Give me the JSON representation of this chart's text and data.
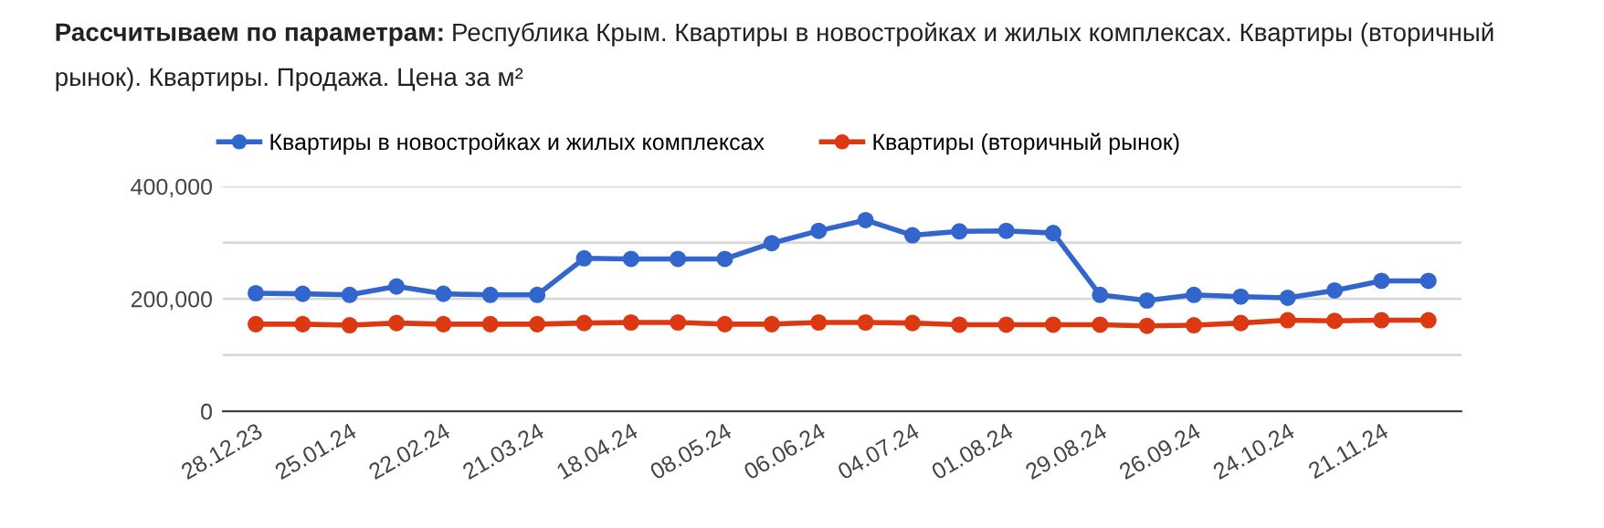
{
  "chart_data": {
    "type": "line",
    "title": "Рассчитываем по параметрам:",
    "subtitle": "Республика Крым. Квартиры в новостройках и жилых комплексах. Квартиры (вторичный рынок). Квартиры. Продажа. Цена за м²",
    "categories": [
      "28.12.23",
      null,
      "25.01.24",
      null,
      "22.02.24",
      null,
      "21.03.24",
      null,
      "18.04.24",
      null,
      "08.05.24",
      null,
      "06.06.24",
      null,
      "04.07.24",
      null,
      "01.08.24",
      null,
      "29.08.24",
      null,
      "26.09.24",
      null,
      "24.10.24",
      null,
      "21.11.24",
      null
    ],
    "series": [
      {
        "name": "Квартиры в новостройках и жилых комплексах",
        "color": "#3366cc",
        "values": [
          210000,
          209000,
          207000,
          222000,
          209000,
          207000,
          207000,
          272000,
          271000,
          271000,
          271000,
          299000,
          321000,
          340000,
          313000,
          320000,
          321000,
          317000,
          207000,
          197000,
          207000,
          204000,
          202000,
          215000,
          232000,
          232000
        ]
      },
      {
        "name": "Квартиры (вторичный рынок)",
        "color": "#dc3912",
        "values": [
          155000,
          155000,
          153000,
          157000,
          155000,
          155000,
          155000,
          157000,
          158000,
          158000,
          155000,
          155000,
          158000,
          158000,
          157000,
          154000,
          154000,
          154000,
          154000,
          152000,
          153000,
          157000,
          162000,
          161000,
          162000,
          162000
        ]
      }
    ],
    "ylim": [
      0,
      400000
    ],
    "yticks": [
      0,
      {
        "value": 100000,
        "label": null
      },
      {
        "value": 200000,
        "label": "200,000"
      },
      {
        "value": 300000,
        "label": null
      },
      {
        "value": 400000,
        "label": "400,000"
      }
    ],
    "grid": "y",
    "legend": "top",
    "marker": "circle",
    "line_style": "solid"
  }
}
